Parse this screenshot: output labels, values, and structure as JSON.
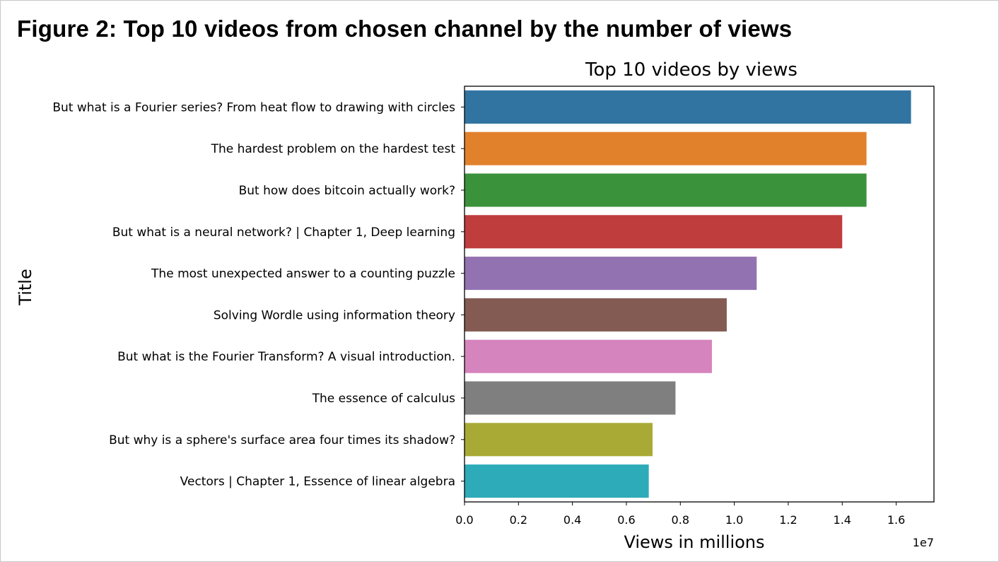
{
  "figure": {
    "caption": "Figure 2: Top 10 videos from chosen channel by the number of views"
  },
  "chart_data": {
    "type": "bar",
    "orientation": "horizontal",
    "title": "Top 10 videos by views",
    "xlabel": "Views in millions",
    "ylabel": "Title",
    "x_offset_label": "1e7",
    "xlim": [
      0,
      1.74
    ],
    "x_ticks": [
      0.0,
      0.2,
      0.4,
      0.6,
      0.8,
      1.0,
      1.2,
      1.4,
      1.6
    ],
    "x_tick_labels": [
      "0.0",
      "0.2",
      "0.4",
      "0.6",
      "0.8",
      "1.0",
      "1.2",
      "1.4",
      "1.6"
    ],
    "grid": false,
    "categories": [
      "But what is a Fourier series?  From heat flow to drawing with circles",
      "The hardest problem on the hardest test",
      "But how does bitcoin actually work?",
      "But what is a neural network? | Chapter 1, Deep learning",
      "The most unexpected answer to a counting puzzle",
      "Solving Wordle using information theory",
      "But what is the Fourier Transform?  A visual introduction.",
      "The essence of calculus",
      "But why is a sphere's surface area four times its shadow?",
      "Vectors | Chapter 1, Essence of linear algebra"
    ],
    "values": [
      1.655,
      1.49,
      1.49,
      1.4,
      1.083,
      0.972,
      0.917,
      0.782,
      0.697,
      0.683
    ],
    "colors": [
      "#3274a1",
      "#e1812c",
      "#3a923a",
      "#c03d3e",
      "#9372b2",
      "#845b53",
      "#d684bd",
      "#7f7f7f",
      "#a9aa35",
      "#2eabb8"
    ]
  }
}
